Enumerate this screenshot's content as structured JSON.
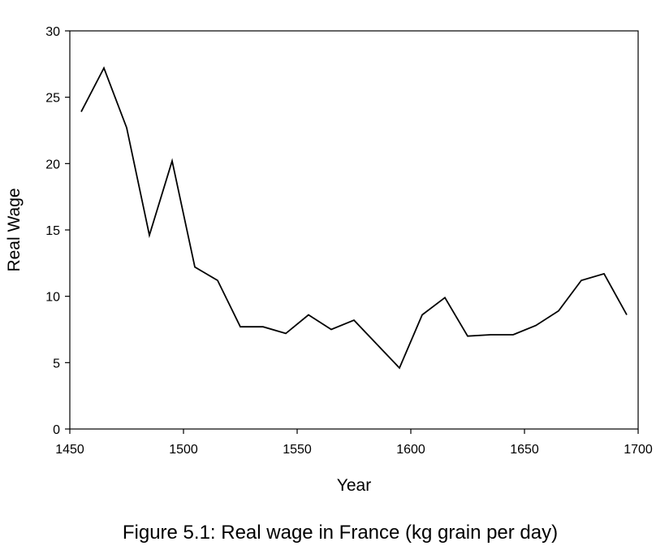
{
  "chart_data": {
    "type": "line",
    "caption": "Figure 5.1: Real wage in France (kg grain per day)",
    "xlabel": "Year",
    "ylabel": "Real Wage",
    "xlim": [
      1450,
      1700
    ],
    "ylim": [
      0,
      30
    ],
    "xticks": [
      "1450",
      "1500",
      "1550",
      "1600",
      "1650",
      "1700"
    ],
    "yticks": [
      "0",
      "5",
      "10",
      "15",
      "20",
      "25",
      "30"
    ],
    "grid": false,
    "legend": "none",
    "line_color": "#000000",
    "series": [
      {
        "x": [
          1455,
          1465,
          1475,
          1485,
          1495,
          1505,
          1515,
          1525,
          1535,
          1545,
          1555,
          1565,
          1575,
          1585,
          1595,
          1605,
          1615,
          1625,
          1635,
          1645,
          1655,
          1665,
          1675,
          1685,
          1695
        ],
        "values": [
          23.9,
          27.2,
          22.7,
          14.6,
          20.2,
          12.2,
          11.2,
          7.7,
          7.7,
          7.2,
          8.6,
          7.5,
          8.2,
          6.4,
          4.6,
          8.6,
          9.9,
          7.0,
          7.1,
          7.1,
          7.8,
          8.9,
          11.2,
          11.7,
          8.6
        ]
      }
    ]
  }
}
